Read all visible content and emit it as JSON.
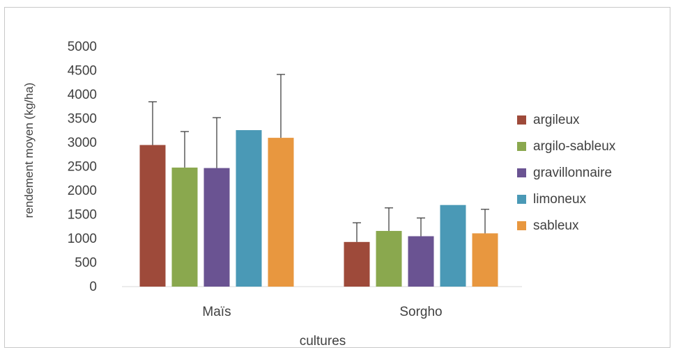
{
  "chart_data": {
    "type": "bar",
    "title": "",
    "xlabel": "cultures",
    "ylabel": "rendement moyen (kg/ha)",
    "ylim": [
      0,
      5000
    ],
    "yticks": [
      "0",
      "500",
      "1000",
      "1500",
      "2000",
      "2500",
      "3000",
      "3500",
      "4000",
      "4500",
      "5000"
    ],
    "grid": false,
    "legend_position": "right",
    "categories": [
      "Maïs",
      "Sorgho"
    ],
    "series": [
      {
        "name": "argileux",
        "color": "#9e4a3a",
        "values": [
          2950,
          930
        ],
        "errors": [
          900,
          400
        ]
      },
      {
        "name": "argilo-sableux",
        "color": "#8aa84e",
        "values": [
          2480,
          1160
        ],
        "errors": [
          750,
          480
        ]
      },
      {
        "name": "gravillonnaire",
        "color": "#6a5392",
        "values": [
          2470,
          1050
        ],
        "errors": [
          1050,
          380
        ]
      },
      {
        "name": "limoneux",
        "color": "#4a99b6",
        "values": [
          3260,
          1700
        ],
        "errors": [
          0,
          0
        ]
      },
      {
        "name": "sableux",
        "color": "#e8973f",
        "values": [
          3100,
          1110
        ],
        "errors": [
          1320,
          500
        ]
      }
    ]
  }
}
